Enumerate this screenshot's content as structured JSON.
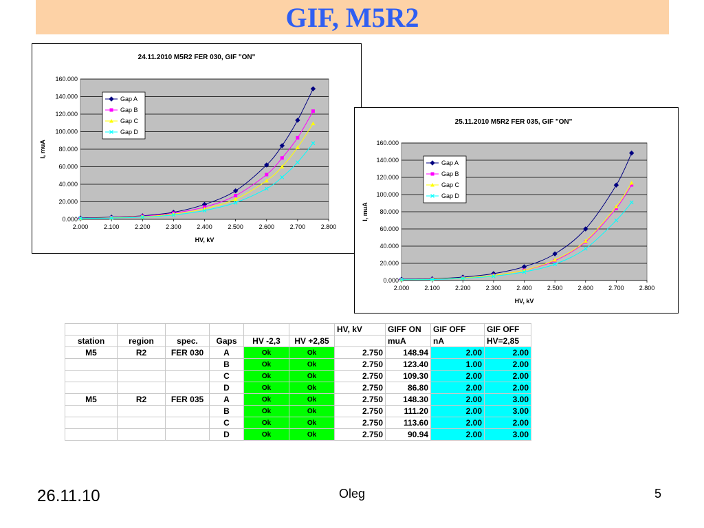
{
  "slide": {
    "title": "GIF, M5R2",
    "footer_date": "26.11.10",
    "footer_author": "Oleg",
    "page_number": "5"
  },
  "chart_data": [
    {
      "type": "line",
      "title": "24.11.2010  M5R2 FER 030, GIF \"ON\"",
      "xlabel": "HV, kV",
      "ylabel": "I, muA",
      "xlim": [
        2.0,
        2.8
      ],
      "ylim": [
        0,
        160
      ],
      "x_ticks": [
        "2.000",
        "2.100",
        "2.200",
        "2.300",
        "2.400",
        "2.500",
        "2.600",
        "2.700",
        "2.800"
      ],
      "y_ticks": [
        "0.000",
        "20.000",
        "40.000",
        "60.000",
        "80.000",
        "100.000",
        "120.000",
        "140.000",
        "160.000"
      ],
      "grid": true,
      "legend_position": "top-left",
      "x": [
        2.0,
        2.1,
        2.2,
        2.3,
        2.4,
        2.5,
        2.6,
        2.65,
        2.7,
        2.75
      ],
      "series": [
        {
          "name": "Gap A",
          "color": "#000080",
          "marker": "diamond",
          "values": [
            1.5,
            2.5,
            4,
            8,
            17,
            32.5,
            62,
            84,
            113,
            148.9
          ]
        },
        {
          "name": "Gap B",
          "color": "#ff00ff",
          "marker": "square",
          "values": [
            1,
            2,
            3.5,
            7,
            14,
            27,
            51,
            70,
            93,
            123.4
          ]
        },
        {
          "name": "Gap C",
          "color": "#ffff00",
          "marker": "triangle",
          "values": [
            1,
            1.8,
            3,
            6,
            12,
            23,
            44,
            60,
            82,
            109.3
          ]
        },
        {
          "name": "Gap D",
          "color": "#00ffff",
          "marker": "x",
          "values": [
            1,
            1.5,
            2.5,
            5,
            10,
            19,
            35,
            48,
            65,
            86.8
          ]
        }
      ]
    },
    {
      "type": "line",
      "title": "25.11.2010  M5R2 FER 035, GIF \"ON\"",
      "xlabel": "HV, kV",
      "ylabel": "I, muA",
      "xlim": [
        2.0,
        2.8
      ],
      "ylim": [
        0,
        160
      ],
      "x_ticks": [
        "2.000",
        "2.100",
        "2.200",
        "2.300",
        "2.400",
        "2.500",
        "2.600",
        "2.700",
        "2.800"
      ],
      "y_ticks": [
        "0.000",
        "20.000",
        "40.000",
        "60.000",
        "80.000",
        "100.000",
        "120.000",
        "140.000",
        "160.000"
      ],
      "grid": true,
      "legend_position": "top-left",
      "x": [
        2.0,
        2.1,
        2.2,
        2.3,
        2.4,
        2.5,
        2.6,
        2.7,
        2.75
      ],
      "series": [
        {
          "name": "Gap A",
          "color": "#000080",
          "marker": "diamond",
          "values": [
            1.5,
            2,
            4,
            8,
            16,
            31,
            60,
            111,
            148.3
          ]
        },
        {
          "name": "Gap B",
          "color": "#ff00ff",
          "marker": "square",
          "values": [
            1,
            1.5,
            3,
            6,
            12,
            23,
            45,
            84,
            111.2
          ]
        },
        {
          "name": "Gap C",
          "color": "#ffff00",
          "marker": "triangle",
          "values": [
            1,
            1.5,
            3,
            6,
            12,
            24,
            46,
            86,
            113.6
          ]
        },
        {
          "name": "Gap D",
          "color": "#00ffff",
          "marker": "x",
          "values": [
            1,
            1.2,
            2.5,
            5,
            10,
            19,
            37,
            70,
            90.9
          ]
        }
      ]
    }
  ],
  "table": {
    "header_top": [
      "",
      "",
      "",
      "",
      "",
      "",
      "HV, kV",
      "GIFF ON",
      "GIF OFF",
      "GIF OFF"
    ],
    "header_main": [
      "station",
      "region",
      "spec.",
      "Gaps",
      "HV -2,3",
      "HV +2,85",
      "",
      "muA",
      "nA",
      "HV=2,85"
    ],
    "rows": [
      [
        "M5",
        "R2",
        "FER 030",
        "A",
        "Ok",
        "Ok",
        "2.750",
        "148.94",
        "2.00",
        "2.00"
      ],
      [
        "",
        "",
        "",
        "B",
        "Ok",
        "Ok",
        "2.750",
        "123.40",
        "1.00",
        "2.00"
      ],
      [
        "",
        "",
        "",
        "C",
        "Ok",
        "Ok",
        "2.750",
        "109.30",
        "2.00",
        "2.00"
      ],
      [
        "",
        "",
        "",
        "D",
        "Ok",
        "Ok",
        "2.750",
        "86.80",
        "2.00",
        "2.00"
      ],
      [
        "M5",
        "R2",
        "FER 035",
        "A",
        "Ok",
        "Ok",
        "2.750",
        "148.30",
        "2.00",
        "3.00"
      ],
      [
        "",
        "",
        "",
        "B",
        "Ok",
        "Ok",
        "2.750",
        "111.20",
        "2.00",
        "3.00"
      ],
      [
        "",
        "",
        "",
        "C",
        "Ok",
        "Ok",
        "2.750",
        "113.60",
        "2.00",
        "2.00"
      ],
      [
        "",
        "",
        "",
        "D",
        "Ok",
        "Ok",
        "2.750",
        "90.94",
        "2.00",
        "3.00"
      ]
    ],
    "colors": {
      "ok_fill": "#00ff00",
      "off_fill": "#00ffff"
    }
  }
}
